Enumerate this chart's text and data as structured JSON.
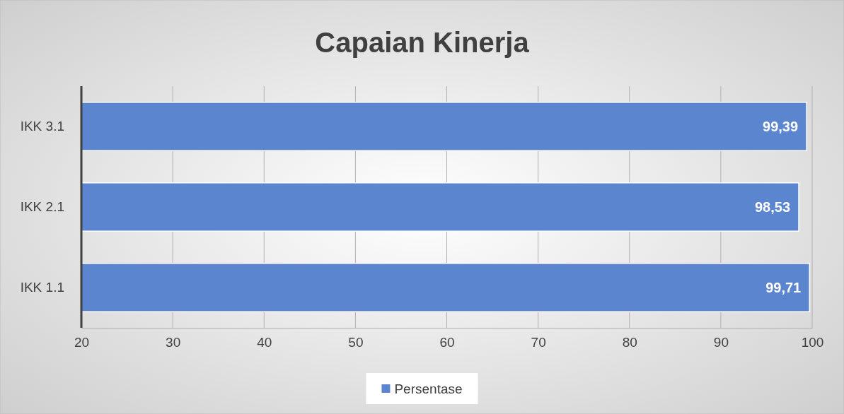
{
  "chart_data": {
    "type": "bar",
    "title": "Capaian Kinerja",
    "orientation": "horizontal",
    "categories": [
      "IKK 3.1",
      "IKK 2.1",
      "IKK 1.1"
    ],
    "series": [
      {
        "name": "Persentase",
        "color": "#5b86cf",
        "values": [
          99.39,
          98.53,
          99.71
        ],
        "value_labels": [
          "99,39",
          "98,53",
          "99,71"
        ]
      }
    ],
    "xlim": [
      20,
      100
    ],
    "xticks": [
      20,
      30,
      40,
      50,
      60,
      70,
      80,
      90,
      100
    ],
    "grid": "x",
    "legend": "bottom"
  }
}
